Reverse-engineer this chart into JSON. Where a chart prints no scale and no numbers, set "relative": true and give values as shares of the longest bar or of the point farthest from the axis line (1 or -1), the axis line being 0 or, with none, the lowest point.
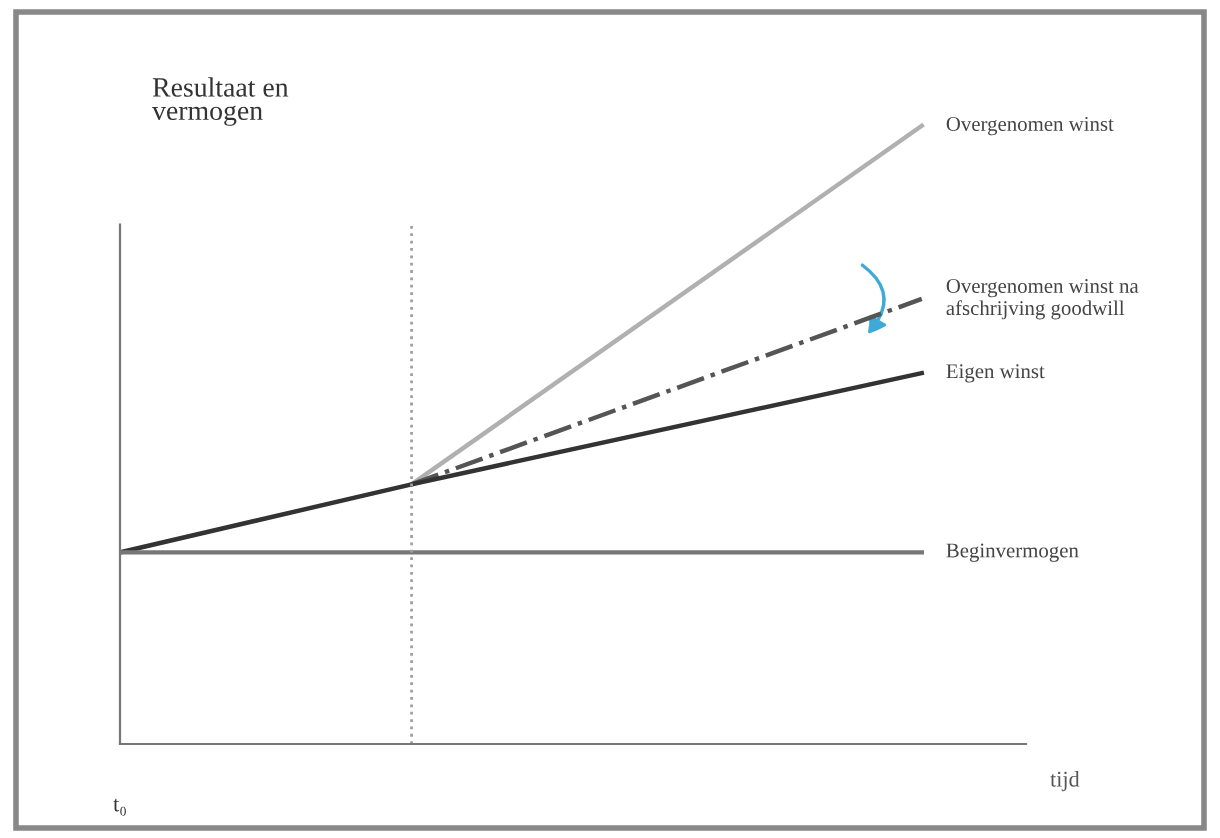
{
  "chart_data": {
    "type": "line",
    "relative": true,
    "xlabel": "tijd",
    "ylabel": "Resultaat en\nvermogen",
    "annotations": [
      "t₀"
    ],
    "categories": [
      null,
      null,
      null,
      null,
      null,
      null,
      null,
      null,
      null,
      null,
      null,
      null
    ],
    "series": [
      {
        "name": "Overgenomen winst",
        "color": "#b0b0b0",
        "values": [
          null,
          null,
          null,
          null,
          0.42,
          null,
          null,
          null,
          null,
          null,
          null,
          1.0
        ],
        "line_style": "solid"
      },
      {
        "name": "Overgenomen winst na\nafschrijving goodwill",
        "color": "#555555",
        "values": [
          null,
          null,
          null,
          null,
          0.42,
          null,
          null,
          null,
          null,
          null,
          null,
          0.72
        ],
        "line_style": "dashdot"
      },
      {
        "name": "Eigen winst",
        "color": "#333333",
        "values": [
          0.31,
          null,
          null,
          null,
          0.42,
          null,
          null,
          null,
          null,
          null,
          null,
          0.6
        ],
        "line_style": "solid"
      },
      {
        "name": "Beginvermogen",
        "color": "#777777",
        "values": [
          0.31,
          null,
          null,
          null,
          null,
          null,
          null,
          null,
          null,
          null,
          null,
          0.31
        ],
        "line_style": "solid"
      }
    ],
    "legend": false,
    "marker": "none"
  }
}
